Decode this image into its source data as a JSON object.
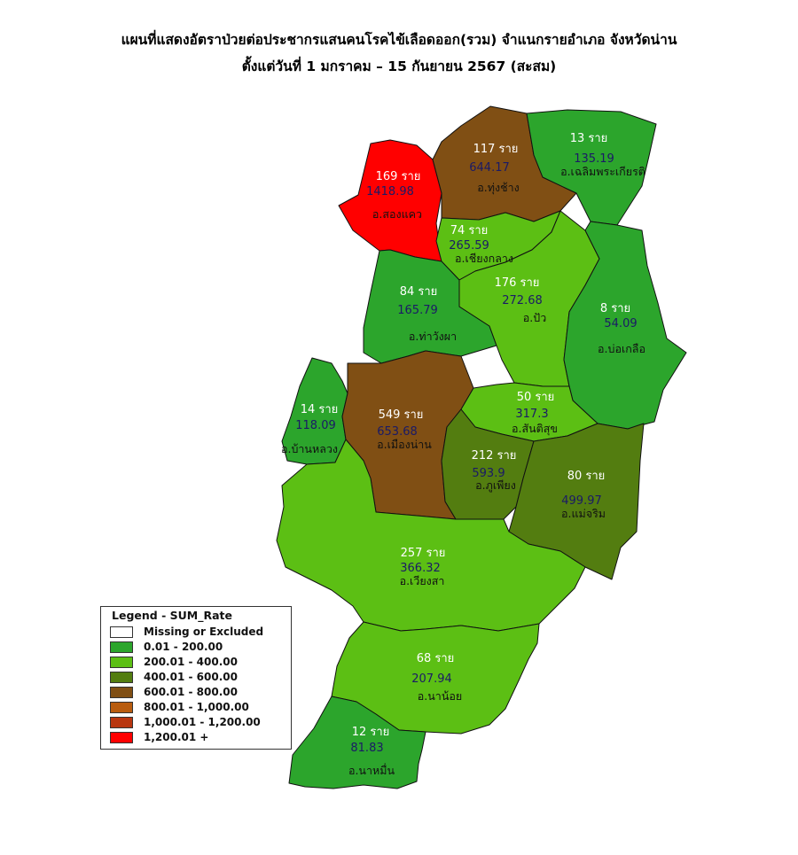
{
  "title": {
    "line1": "แผนที่แสดงอัตราป่วยต่อประชากรแสนคนโรคไข้เลือดออก(รวม) จำแนกรายอำเภอ จังหวัดน่าน",
    "line2": "ตั้งแต่วันที่ 1 มกราคม – 15 กันยายน 2567 (สะสม)"
  },
  "colors": {
    "c0": "#ffffff",
    "c1": "#2ca52c",
    "c2": "#5cbf14",
    "c3": "#537d10",
    "c4": "#804f14",
    "c5": "#b85c0f",
    "c6": "#b8360f",
    "c7": "#ff0000"
  },
  "districts": [
    {
      "id": "songkhwae",
      "count": "169 ราย",
      "rate": "1418.98",
      "name": "อ.สองแคว",
      "rate_value": 1418.98
    },
    {
      "id": "thung-chang",
      "count": "117 ราย",
      "rate": "644.17",
      "name": "อ.ทุ่งช้าง",
      "rate_value": 644.17
    },
    {
      "id": "chaloem",
      "count": "13 ราย",
      "rate": "135.19",
      "name": "อ.เฉลิมพระเกียรติ",
      "rate_value": 135.19
    },
    {
      "id": "chiang-klang",
      "count": "74 ราย",
      "rate": "265.59",
      "name": "อ.เชียงกลาง",
      "rate_value": 265.59
    },
    {
      "id": "tha-wang-pha",
      "count": "84 ราย",
      "rate": "165.79",
      "name": "อ.ท่าวังผา",
      "rate_value": 165.79
    },
    {
      "id": "pua",
      "count": "176 ราย",
      "rate": "272.68",
      "name": "อ.ปัว",
      "rate_value": 272.68
    },
    {
      "id": "bo-kluea",
      "count": "8 ราย",
      "rate": "54.09",
      "name": "อ.บ่อเกลือ",
      "rate_value": 54.09
    },
    {
      "id": "ban-luang",
      "count": "14 ราย",
      "rate": "118.09",
      "name": "อ.บ้านหลวง",
      "rate_value": 118.09
    },
    {
      "id": "mueang-nan",
      "count": "549 ราย",
      "rate": "653.68",
      "name": "อ.เมืองน่าน",
      "rate_value": 653.68
    },
    {
      "id": "santi-suk",
      "count": "50 ราย",
      "rate": "317.3",
      "name": "อ.สันติสุข",
      "rate_value": 317.3
    },
    {
      "id": "phu-phiang",
      "count": "212 ราย",
      "rate": "593.9",
      "name": "อ.ภูเพียง",
      "rate_value": 593.9
    },
    {
      "id": "mae-charim",
      "count": "80 ราย",
      "rate": "499.97",
      "name": "อ.แม่จริม",
      "rate_value": 499.97
    },
    {
      "id": "wiang-sa",
      "count": "257 ราย",
      "rate": "366.32",
      "name": "อ.เวียงสา",
      "rate_value": 366.32
    },
    {
      "id": "na-noi",
      "count": "68 ราย",
      "rate": "207.94",
      "name": "อ.นาน้อย",
      "rate_value": 207.94
    },
    {
      "id": "na-muen",
      "count": "12 ราย",
      "rate": "81.83",
      "name": "อ.นาหมื่น",
      "rate_value": 81.83
    }
  ],
  "legend": {
    "title": "Legend - SUM_Rate",
    "items": [
      {
        "label": "Missing or Excluded",
        "color": "#ffffff"
      },
      {
        "label": "0.01 - 200.00",
        "color": "#2ca52c"
      },
      {
        "label": "200.01 - 400.00",
        "color": "#5cbf14"
      },
      {
        "label": "400.01 - 600.00",
        "color": "#537d10"
      },
      {
        "label": "600.01 - 800.00",
        "color": "#804f14"
      },
      {
        "label": "800.01 - 1,000.00",
        "color": "#b85c0f"
      },
      {
        "label": "1,000.01 - 1,200.00",
        "color": "#b8360f"
      },
      {
        "label": "1,200.01 +",
        "color": "#ff0000"
      }
    ]
  }
}
